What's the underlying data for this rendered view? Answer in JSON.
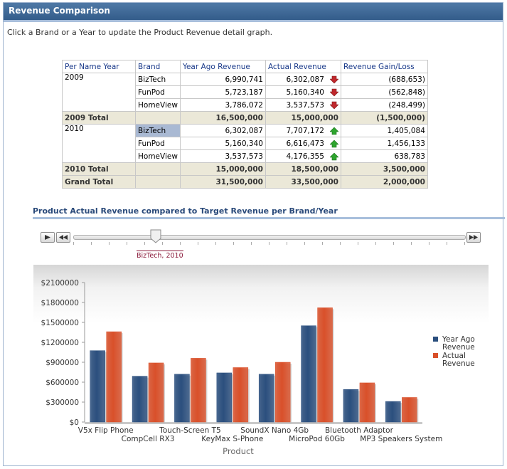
{
  "header": {
    "title": "Revenue Comparison"
  },
  "instruction": "Click a Brand or a Year to update the Product Revenue detail graph.",
  "pivot": {
    "columns": [
      "Per Name Year",
      "Brand",
      "Year Ago Revenue",
      "Actual Revenue",
      "Revenue Gain/Loss"
    ],
    "rows_2009": [
      {
        "year": "2009",
        "brand": "BizTech",
        "ago": "6,990,741",
        "actual": "6,302,087",
        "trend": "down",
        "gain": "(688,653)"
      },
      {
        "year": "",
        "brand": "FunPod",
        "ago": "5,723,187",
        "actual": "5,160,340",
        "trend": "down",
        "gain": "(562,848)"
      },
      {
        "year": "",
        "brand": "HomeView",
        "ago": "3,786,072",
        "actual": "3,537,573",
        "trend": "down",
        "gain": "(248,499)"
      }
    ],
    "total_2009": {
      "label": "2009 Total",
      "ago": "16,500,000",
      "actual": "15,000,000",
      "gain": "(1,500,000)"
    },
    "rows_2010": [
      {
        "year": "2010",
        "brand": "BizTech",
        "ago": "6,302,087",
        "actual": "7,707,172",
        "trend": "up",
        "gain": "1,405,084"
      },
      {
        "year": "",
        "brand": "FunPod",
        "ago": "5,160,340",
        "actual": "6,616,473",
        "trend": "up",
        "gain": "1,456,133"
      },
      {
        "year": "",
        "brand": "HomeView",
        "ago": "3,537,573",
        "actual": "4,176,355",
        "trend": "up",
        "gain": "638,783"
      }
    ],
    "total_2010": {
      "label": "2010 Total",
      "ago": "15,000,000",
      "actual": "18,500,000",
      "gain": "3,500,000"
    },
    "grand_total": {
      "label": "Grand Total",
      "ago": "31,500,000",
      "actual": "33,500,000",
      "gain": "2,000,000"
    },
    "selected_brand": "BizTech 2010"
  },
  "section": {
    "title": "Product Actual Revenue compared to Target Revenue per Brand/Year"
  },
  "slider": {
    "value_label": "BizTech, 2010",
    "tick_count": 23,
    "position": 0.2
  },
  "colors": {
    "year_ago": "#2b4f7e",
    "actual": "#d9502a",
    "header_bg": "#335c8a",
    "up": "#2ea52e",
    "down": "#c0282d"
  },
  "chart_data": {
    "type": "bar",
    "categories": [
      "V5x Flip Phone",
      "CompCell RX3",
      "Touch-Screen T5",
      "KeyMax S-Phone",
      "SoundX Nano 4Gb",
      "MicroPod 60Gb",
      "Bluetooth Adaptor",
      "MP3 Speakers System"
    ],
    "series": [
      {
        "name": "Year Ago Revenue",
        "values": [
          1075000,
          690000,
          720000,
          740000,
          720000,
          1450000,
          490000,
          310000
        ]
      },
      {
        "name": "Actual Revenue",
        "values": [
          1360000,
          890000,
          960000,
          820000,
          900000,
          1720000,
          590000,
          370000
        ]
      }
    ],
    "xlabel": "Product",
    "ylabel": "",
    "ylim": [
      0,
      2100000
    ],
    "yticks": [
      "$0",
      "$300000",
      "$600000",
      "$900000",
      "$1200000",
      "$1500000",
      "$1800000",
      "$2100000"
    ],
    "legend": "right"
  }
}
